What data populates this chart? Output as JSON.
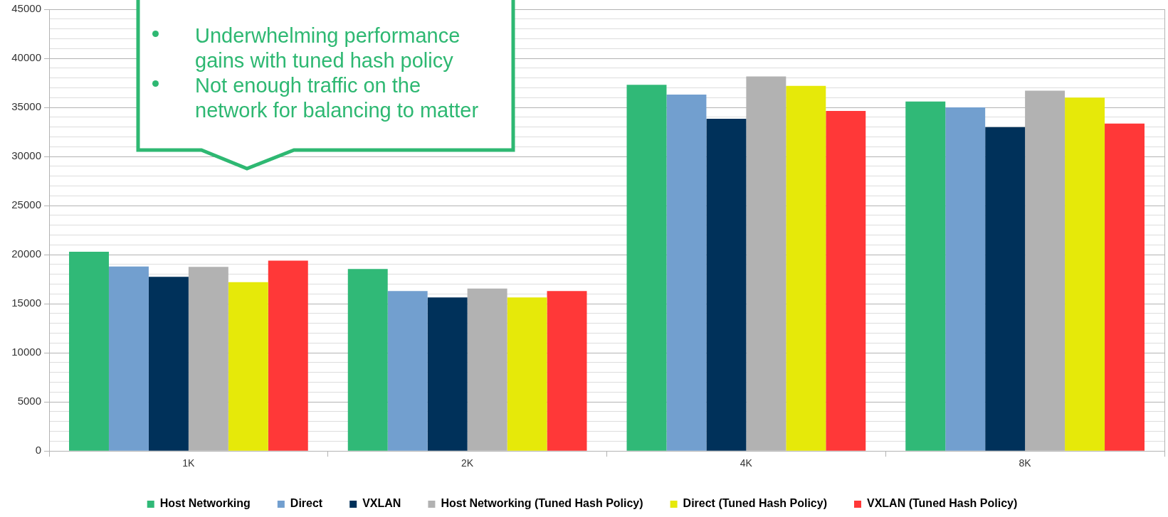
{
  "chart_data": {
    "type": "bar",
    "categories": [
      "1K",
      "2K",
      "4K",
      "8K"
    ],
    "series": [
      {
        "name": "Host Networking",
        "color": "#30b977",
        "values": [
          20300,
          18550,
          37300,
          35600
        ]
      },
      {
        "name": "Direct",
        "color": "#729fcf",
        "values": [
          18800,
          16300,
          36300,
          35000
        ]
      },
      {
        "name": "VXLAN",
        "color": "#00315a",
        "values": [
          17750,
          15650,
          33850,
          33000
        ]
      },
      {
        "name": "Host Networking (Tuned Hash Policy)",
        "color": "#b2b2b2",
        "values": [
          18750,
          16550,
          38150,
          36700
        ]
      },
      {
        "name": "Direct (Tuned Hash Policy)",
        "color": "#e6e909",
        "values": [
          17200,
          15650,
          37200,
          36000
        ]
      },
      {
        "name": "VXLAN (Tuned Hash Policy)",
        "color": "#ff3838",
        "values": [
          19400,
          16300,
          34650,
          33350
        ]
      }
    ],
    "ylim": [
      0,
      45000
    ],
    "yticks": [
      0,
      {
        "value": 1000,
        "label": null
      },
      {
        "value": 2000,
        "label": null
      },
      {
        "value": 3000,
        "label": null
      },
      {
        "value": 4000,
        "label": null
      },
      5000,
      {
        "value": 6000,
        "label": null
      },
      {
        "value": 7000,
        "label": null
      },
      {
        "value": 8000,
        "label": null
      },
      {
        "value": 9000,
        "label": null
      },
      10000,
      {
        "value": 11000,
        "label": null
      },
      {
        "value": 12000,
        "label": null
      },
      {
        "value": 13000,
        "label": null
      },
      {
        "value": 14000,
        "label": null
      },
      15000,
      {
        "value": 16000,
        "label": null
      },
      {
        "value": 17000,
        "label": null
      },
      {
        "value": 18000,
        "label": null
      },
      {
        "value": 19000,
        "label": null
      },
      20000,
      {
        "value": 21000,
        "label": null
      },
      {
        "value": 22000,
        "label": null
      },
      {
        "value": 23000,
        "label": null
      },
      {
        "value": 24000,
        "label": null
      },
      25000,
      {
        "value": 26000,
        "label": null
      },
      {
        "value": 27000,
        "label": null
      },
      {
        "value": 28000,
        "label": null
      },
      {
        "value": 29000,
        "label": null
      },
      30000,
      {
        "value": 31000,
        "label": null
      },
      {
        "value": 32000,
        "label": null
      },
      {
        "value": 33000,
        "label": null
      },
      {
        "value": 34000,
        "label": null
      },
      35000,
      {
        "value": 36000,
        "label": null
      },
      {
        "value": 37000,
        "label": null
      },
      {
        "value": 38000,
        "label": null
      },
      {
        "value": 39000,
        "label": null
      },
      40000,
      {
        "value": 41000,
        "label": null
      },
      {
        "value": 42000,
        "label": null
      },
      {
        "value": 43000,
        "label": null
      },
      {
        "value": 44000,
        "label": null
      },
      45000
    ],
    "grid": "y",
    "legend": "bottom",
    "annotations": [
      "Underwhelming performance gains with tuned hash policy",
      "Not enough traffic on the network for balancing to matter"
    ]
  }
}
